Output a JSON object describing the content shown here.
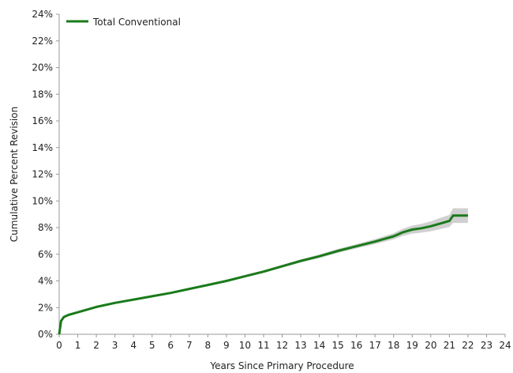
{
  "chart_data": {
    "type": "line",
    "title": "",
    "xlabel": "Years Since Primary Procedure",
    "ylabel": "Cumulative Percent Revision",
    "xlim": [
      0,
      24
    ],
    "ylim": [
      0,
      24
    ],
    "x_ticks": [
      "0",
      "1",
      "2",
      "3",
      "4",
      "5",
      "6",
      "7",
      "8",
      "9",
      "10",
      "11",
      "12",
      "13",
      "14",
      "15",
      "16",
      "17",
      "18",
      "19",
      "20",
      "21",
      "22",
      "23",
      "24"
    ],
    "y_ticks": [
      "0%",
      "2%",
      "4%",
      "6%",
      "8%",
      "10%",
      "12%",
      "14%",
      "16%",
      "18%",
      "20%",
      "22%",
      "24%"
    ],
    "legend_position": "top-left",
    "series": [
      {
        "name": "Total Conventional",
        "color": "#1a7a1a",
        "x": [
          0,
          0.1,
          0.25,
          0.5,
          1,
          1.5,
          2,
          3,
          4,
          5,
          6,
          7,
          8,
          9,
          10,
          11,
          12,
          13,
          14,
          15,
          16,
          17,
          17.5,
          18,
          18.5,
          19,
          19.5,
          20,
          20.5,
          21,
          21.1,
          21.2,
          21.3,
          22
        ],
        "y": [
          0,
          1.0,
          1.3,
          1.45,
          1.65,
          1.85,
          2.05,
          2.35,
          2.6,
          2.85,
          3.1,
          3.4,
          3.7,
          4.0,
          4.35,
          4.7,
          5.1,
          5.5,
          5.85,
          6.25,
          6.6,
          6.95,
          7.15,
          7.35,
          7.65,
          7.85,
          7.95,
          8.1,
          8.3,
          8.5,
          8.7,
          8.9,
          8.9,
          8.9
        ],
        "ci_lower": [
          0,
          0.9,
          1.2,
          1.38,
          1.58,
          1.78,
          1.98,
          2.28,
          2.53,
          2.78,
          3.03,
          3.32,
          3.62,
          3.92,
          4.26,
          4.6,
          5.0,
          5.38,
          5.72,
          6.1,
          6.44,
          6.76,
          6.94,
          7.12,
          7.38,
          7.55,
          7.62,
          7.73,
          7.88,
          8.05,
          8.2,
          8.35,
          8.35,
          8.35
        ],
        "ci_upper": [
          0,
          1.1,
          1.4,
          1.52,
          1.72,
          1.92,
          2.12,
          2.42,
          2.67,
          2.92,
          3.17,
          3.48,
          3.78,
          4.08,
          4.44,
          4.8,
          5.2,
          5.62,
          5.98,
          6.4,
          6.76,
          7.14,
          7.36,
          7.58,
          7.92,
          8.15,
          8.28,
          8.47,
          8.72,
          8.95,
          9.2,
          9.45,
          9.45,
          9.45
        ]
      }
    ]
  }
}
